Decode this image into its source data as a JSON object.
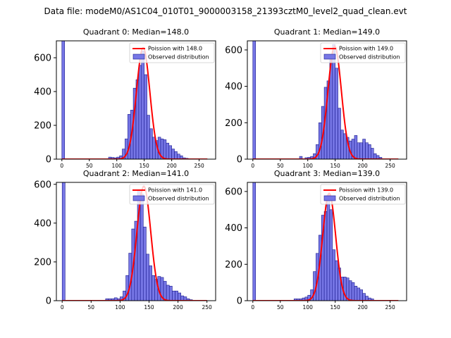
{
  "figure_title": "Data file: modeM0/AS1C04_010T01_9000003158_21393cztM0_level2_quad_clean.evt",
  "colors": {
    "bar_fill": "#7777e6",
    "bar_edge": "#1a1a8c",
    "poisson_line": "#ff0000",
    "axes": "#000000",
    "background": "#ffffff"
  },
  "chart_data": [
    {
      "type": "bar",
      "title": "Quadrant 0: Median=148.0",
      "xlabel": "",
      "ylabel": "",
      "xlim": [
        -10,
        280
      ],
      "ylim": [
        0,
        700
      ],
      "xticks": [
        0,
        50,
        100,
        150,
        200,
        250
      ],
      "yticks": [
        0,
        200,
        400,
        600
      ],
      "bin_width": 5,
      "bins": [
        {
          "x": 0,
          "count": 700
        },
        {
          "x": 85,
          "count": 12
        },
        {
          "x": 90,
          "count": 10
        },
        {
          "x": 95,
          "count": 8
        },
        {
          "x": 100,
          "count": 12
        },
        {
          "x": 105,
          "count": 20
        },
        {
          "x": 110,
          "count": 60
        },
        {
          "x": 115,
          "count": 120
        },
        {
          "x": 120,
          "count": 265
        },
        {
          "x": 125,
          "count": 290
        },
        {
          "x": 130,
          "count": 420
        },
        {
          "x": 135,
          "count": 470
        },
        {
          "x": 140,
          "count": 555
        },
        {
          "x": 145,
          "count": 640
        },
        {
          "x": 150,
          "count": 500
        },
        {
          "x": 155,
          "count": 260
        },
        {
          "x": 160,
          "count": 180
        },
        {
          "x": 165,
          "count": 130
        },
        {
          "x": 170,
          "count": 110
        },
        {
          "x": 175,
          "count": 130
        },
        {
          "x": 180,
          "count": 120
        },
        {
          "x": 185,
          "count": 115
        },
        {
          "x": 190,
          "count": 95
        },
        {
          "x": 195,
          "count": 80
        },
        {
          "x": 200,
          "count": 60
        },
        {
          "x": 205,
          "count": 45
        },
        {
          "x": 210,
          "count": 30
        },
        {
          "x": 215,
          "count": 20
        },
        {
          "x": 220,
          "count": 8
        },
        {
          "x": 225,
          "count": 5
        }
      ],
      "poisson_mean": 148.0,
      "poisson_peak": 660,
      "poisson_xrange": [
        0,
        265
      ],
      "legend": {
        "location": "top-right",
        "line_label": "Poission with 148.0",
        "bar_label": "Observed distribution"
      }
    },
    {
      "type": "bar",
      "title": "Quadrant 1: Median=149.0",
      "xlabel": "",
      "ylabel": "",
      "xlim": [
        -10,
        280
      ],
      "ylim": [
        0,
        650
      ],
      "xticks": [
        0,
        50,
        100,
        150,
        200,
        250
      ],
      "yticks": [
        0,
        200,
        400,
        600
      ],
      "bin_width": 5,
      "bins": [
        {
          "x": 0,
          "count": 650
        },
        {
          "x": 85,
          "count": 15
        },
        {
          "x": 95,
          "count": 8
        },
        {
          "x": 100,
          "count": 10
        },
        {
          "x": 105,
          "count": 15
        },
        {
          "x": 110,
          "count": 30
        },
        {
          "x": 115,
          "count": 80
        },
        {
          "x": 120,
          "count": 200
        },
        {
          "x": 125,
          "count": 290
        },
        {
          "x": 130,
          "count": 395
        },
        {
          "x": 135,
          "count": 430
        },
        {
          "x": 140,
          "count": 560
        },
        {
          "x": 145,
          "count": 630
        },
        {
          "x": 150,
          "count": 500
        },
        {
          "x": 155,
          "count": 280
        },
        {
          "x": 160,
          "count": 160
        },
        {
          "x": 165,
          "count": 140
        },
        {
          "x": 170,
          "count": 120
        },
        {
          "x": 175,
          "count": 100
        },
        {
          "x": 180,
          "count": 110
        },
        {
          "x": 185,
          "count": 130
        },
        {
          "x": 190,
          "count": 90
        },
        {
          "x": 195,
          "count": 90
        },
        {
          "x": 200,
          "count": 110
        },
        {
          "x": 205,
          "count": 90
        },
        {
          "x": 210,
          "count": 80
        },
        {
          "x": 215,
          "count": 60
        },
        {
          "x": 220,
          "count": 30
        },
        {
          "x": 225,
          "count": 20
        },
        {
          "x": 230,
          "count": 10
        }
      ],
      "poisson_mean": 149.0,
      "poisson_peak": 620,
      "poisson_xrange": [
        0,
        265
      ],
      "legend": {
        "location": "top-right",
        "line_label": "Poission with 149.0",
        "bar_label": "Observed distribution"
      }
    },
    {
      "type": "bar",
      "title": "Quadrant 2: Median=141.0",
      "xlabel": "",
      "ylabel": "",
      "xlim": [
        -10,
        265
      ],
      "ylim": [
        0,
        610
      ],
      "xticks": [
        0,
        50,
        100,
        150,
        200,
        250
      ],
      "yticks": [
        0,
        200,
        400,
        600
      ],
      "bin_width": 5,
      "bins": [
        {
          "x": 0,
          "count": 610
        },
        {
          "x": 75,
          "count": 10
        },
        {
          "x": 80,
          "count": 10
        },
        {
          "x": 85,
          "count": 10
        },
        {
          "x": 90,
          "count": 15
        },
        {
          "x": 95,
          "count": 10
        },
        {
          "x": 100,
          "count": 20
        },
        {
          "x": 105,
          "count": 50
        },
        {
          "x": 110,
          "count": 130
        },
        {
          "x": 115,
          "count": 245
        },
        {
          "x": 120,
          "count": 370
        },
        {
          "x": 125,
          "count": 410
        },
        {
          "x": 130,
          "count": 570
        },
        {
          "x": 135,
          "count": 550
        },
        {
          "x": 140,
          "count": 380
        },
        {
          "x": 145,
          "count": 240
        },
        {
          "x": 150,
          "count": 180
        },
        {
          "x": 155,
          "count": 130
        },
        {
          "x": 160,
          "count": 110
        },
        {
          "x": 165,
          "count": 125
        },
        {
          "x": 170,
          "count": 120
        },
        {
          "x": 175,
          "count": 100
        },
        {
          "x": 180,
          "count": 80
        },
        {
          "x": 185,
          "count": 75
        },
        {
          "x": 190,
          "count": 50
        },
        {
          "x": 195,
          "count": 50
        },
        {
          "x": 200,
          "count": 40
        },
        {
          "x": 205,
          "count": 25
        },
        {
          "x": 210,
          "count": 20
        },
        {
          "x": 215,
          "count": 10
        },
        {
          "x": 220,
          "count": 5
        },
        {
          "x": 225,
          "count": 2
        }
      ],
      "poisson_mean": 141.0,
      "poisson_peak": 590,
      "poisson_xrange": [
        0,
        250
      ],
      "legend": {
        "location": "top-right",
        "line_label": "Poission with 141.0",
        "bar_label": "Observed distribution"
      }
    },
    {
      "type": "bar",
      "title": "Quadrant 3: Median=139.0",
      "xlabel": "",
      "ylabel": "",
      "xlim": [
        -10,
        280
      ],
      "ylim": [
        0,
        650
      ],
      "xticks": [
        0,
        50,
        100,
        150,
        200,
        250
      ],
      "yticks": [
        0,
        200,
        400,
        600
      ],
      "bin_width": 5,
      "bins": [
        {
          "x": 0,
          "count": 650
        },
        {
          "x": 75,
          "count": 10
        },
        {
          "x": 80,
          "count": 10
        },
        {
          "x": 85,
          "count": 10
        },
        {
          "x": 90,
          "count": 15
        },
        {
          "x": 95,
          "count": 20
        },
        {
          "x": 100,
          "count": 30
        },
        {
          "x": 105,
          "count": 60
        },
        {
          "x": 110,
          "count": 160
        },
        {
          "x": 115,
          "count": 260
        },
        {
          "x": 120,
          "count": 360
        },
        {
          "x": 125,
          "count": 470
        },
        {
          "x": 130,
          "count": 490
        },
        {
          "x": 135,
          "count": 580
        },
        {
          "x": 140,
          "count": 500
        },
        {
          "x": 145,
          "count": 280
        },
        {
          "x": 150,
          "count": 220
        },
        {
          "x": 155,
          "count": 180
        },
        {
          "x": 160,
          "count": 130
        },
        {
          "x": 165,
          "count": 130
        },
        {
          "x": 170,
          "count": 125
        },
        {
          "x": 175,
          "count": 110
        },
        {
          "x": 180,
          "count": 100
        },
        {
          "x": 185,
          "count": 80
        },
        {
          "x": 190,
          "count": 70
        },
        {
          "x": 195,
          "count": 60
        },
        {
          "x": 200,
          "count": 40
        },
        {
          "x": 205,
          "count": 25
        },
        {
          "x": 210,
          "count": 15
        },
        {
          "x": 215,
          "count": 10
        }
      ],
      "poisson_mean": 139.0,
      "poisson_peak": 590,
      "poisson_xrange": [
        0,
        265
      ],
      "legend": {
        "location": "top-right",
        "line_label": "Poission with 139.0",
        "bar_label": "Observed distribution"
      }
    }
  ]
}
